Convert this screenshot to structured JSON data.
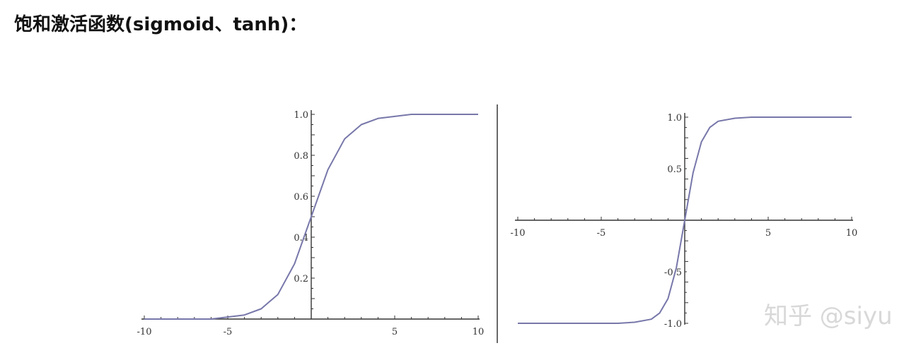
{
  "heading": "饱和激活函数(sigmoid、tanh)：",
  "watermark": "知乎 @siyu",
  "colors": {
    "curve": "#7777aa",
    "axis": "#333333"
  },
  "chart_data": [
    {
      "type": "line",
      "name": "sigmoid",
      "xlim": [
        -10,
        10
      ],
      "ylim": [
        0,
        1
      ],
      "xticks": [
        -10,
        -5,
        5,
        10
      ],
      "xtick_labels": [
        "-10",
        "-5",
        "5",
        "10"
      ],
      "yticks": [
        0.2,
        0.4,
        0.6,
        0.8,
        1.0
      ],
      "ytick_labels": [
        "0.2",
        "0.4",
        "0.6",
        "0.8",
        "1.0"
      ],
      "x": [
        -10,
        -8,
        -6,
        -5,
        -4,
        -3,
        -2,
        -1,
        0,
        1,
        2,
        3,
        4,
        5,
        6,
        8,
        10
      ],
      "y": [
        0.0,
        0.0,
        0.0,
        0.01,
        0.02,
        0.05,
        0.12,
        0.27,
        0.5,
        0.73,
        0.88,
        0.95,
        0.98,
        0.99,
        1.0,
        1.0,
        1.0
      ]
    },
    {
      "type": "line",
      "name": "tanh",
      "xlim": [
        -10,
        10
      ],
      "ylim": [
        -1,
        1
      ],
      "xticks": [
        -10,
        -5,
        5,
        10
      ],
      "xtick_labels": [
        "-10",
        "-5",
        "5",
        "10"
      ],
      "yticks": [
        -1.0,
        -0.5,
        0.5,
        1.0
      ],
      "ytick_labels": [
        "-1.0",
        "-0.5",
        "0.5",
        "1.0"
      ],
      "x": [
        -10,
        -6,
        -4,
        -3,
        -2,
        -1.5,
        -1,
        -0.5,
        0,
        0.5,
        1,
        1.5,
        2,
        3,
        4,
        6,
        10
      ],
      "y": [
        -1.0,
        -1.0,
        -1.0,
        -0.99,
        -0.96,
        -0.9,
        -0.76,
        -0.46,
        0.0,
        0.46,
        0.76,
        0.9,
        0.96,
        0.99,
        1.0,
        1.0,
        1.0
      ]
    }
  ]
}
